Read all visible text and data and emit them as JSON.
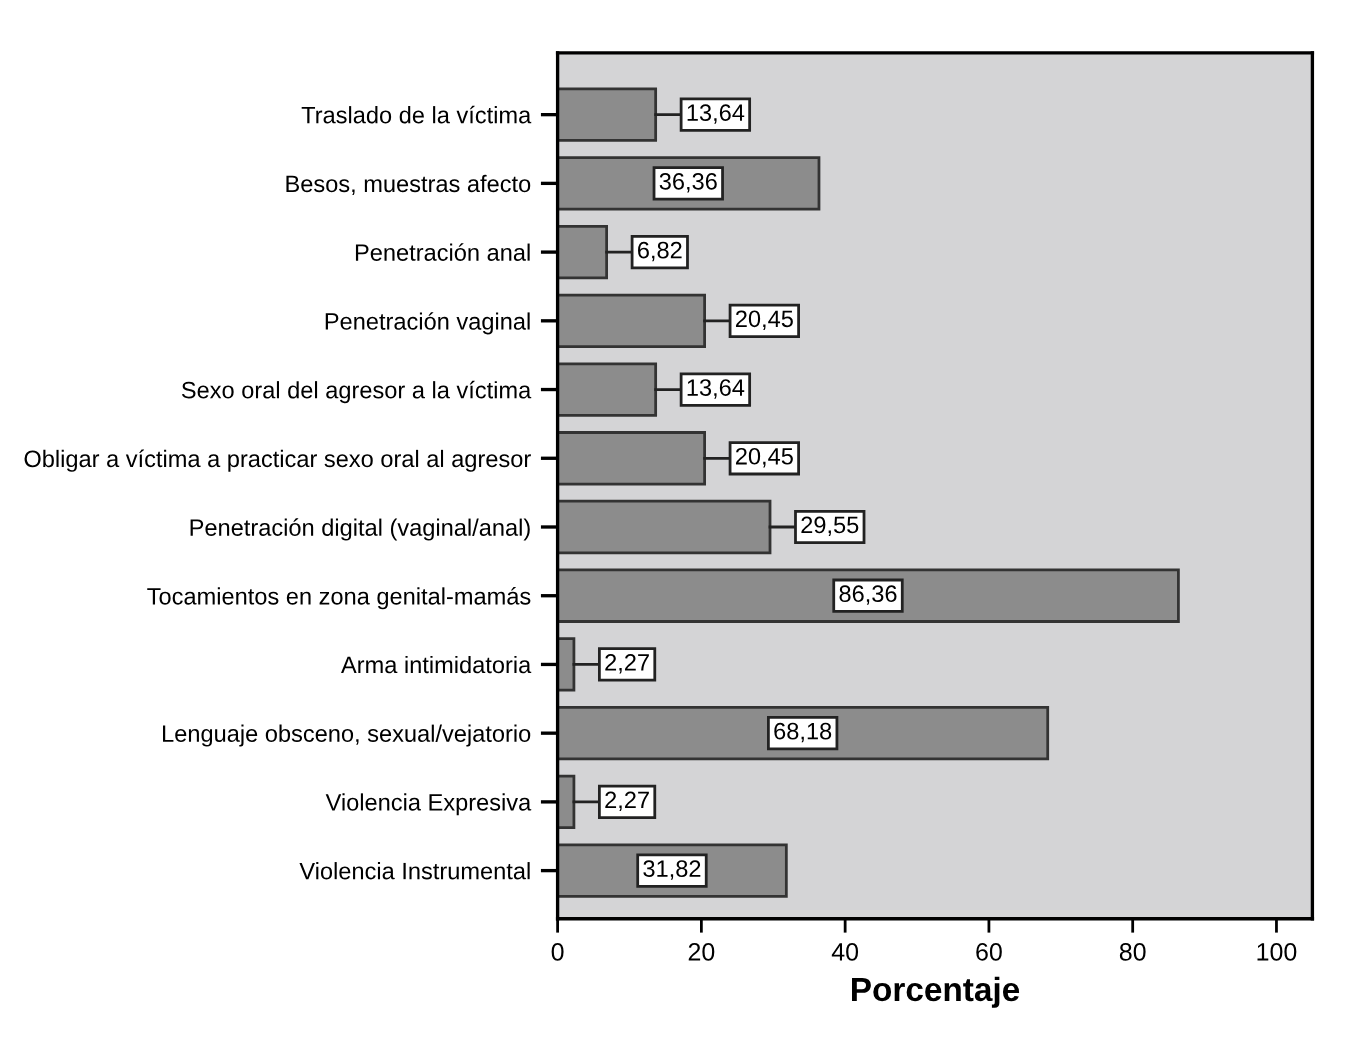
{
  "chart_data": {
    "type": "bar",
    "orientation": "horizontal",
    "xlabel": "Porcentaje",
    "categories": [
      "Traslado de la víctima",
      "Besos, muestras afecto",
      "Penetración anal",
      "Penetración vaginal",
      "Sexo oral del agresor a la víctima",
      "Obligar a víctima a practicar sexo oral al agresor",
      "Penetración digital (vaginal/anal)",
      "Tocamientos en zona genital-mamás",
      "Arma intimidatoria",
      "Lenguaje obsceno, sexual/vejatorio",
      "Violencia Expresiva",
      "Violencia Instrumental"
    ],
    "values": [
      13.64,
      36.36,
      6.82,
      20.45,
      13.64,
      20.45,
      29.55,
      86.36,
      2.27,
      68.18,
      2.27,
      31.82
    ],
    "value_labels": [
      "13,64",
      "36,36",
      "6,82",
      "20,45",
      "13,64",
      "20,45",
      "29,55",
      "86,36",
      "2,27",
      "68,18",
      "2,27",
      "31,82"
    ],
    "color": "#8c8c8c",
    "xlim": [
      0,
      105
    ],
    "xticks": [
      0,
      20,
      40,
      60,
      80,
      100
    ],
    "grid": false,
    "legend": false
  }
}
